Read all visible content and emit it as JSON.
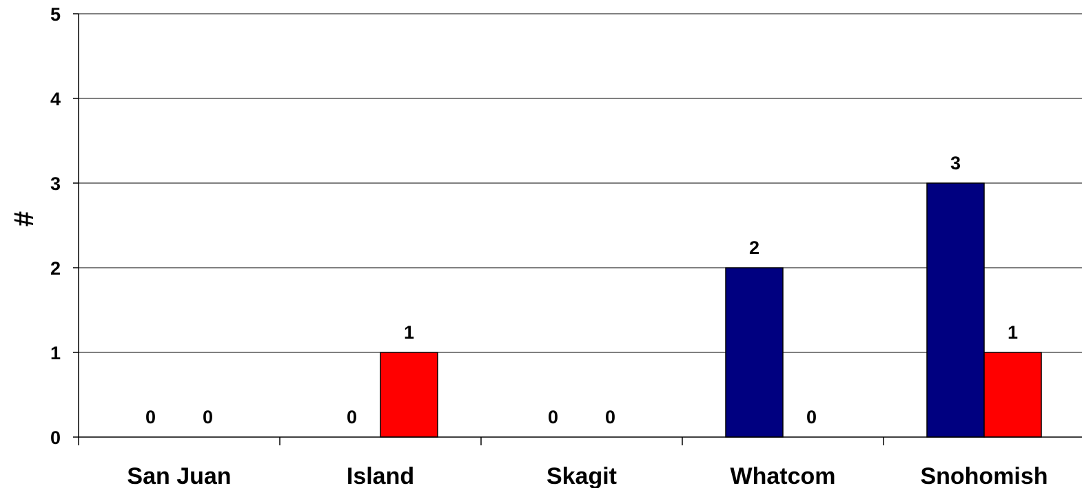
{
  "chart_data": {
    "type": "bar",
    "ylabel": "#",
    "xlabel": "",
    "title": "",
    "ylim": [
      0,
      5
    ],
    "yticks": [
      0,
      1,
      2,
      3,
      4,
      5
    ],
    "grid": true,
    "legend": "none",
    "categories": [
      "San Juan",
      "Island",
      "Skagit",
      "Whatcom",
      "Snohomish"
    ],
    "series": [
      {
        "color": "#000080",
        "values": [
          0,
          0,
          0,
          2,
          3
        ]
      },
      {
        "color": "#FF0000",
        "values": [
          0,
          1,
          0,
          0,
          1
        ]
      }
    ]
  }
}
